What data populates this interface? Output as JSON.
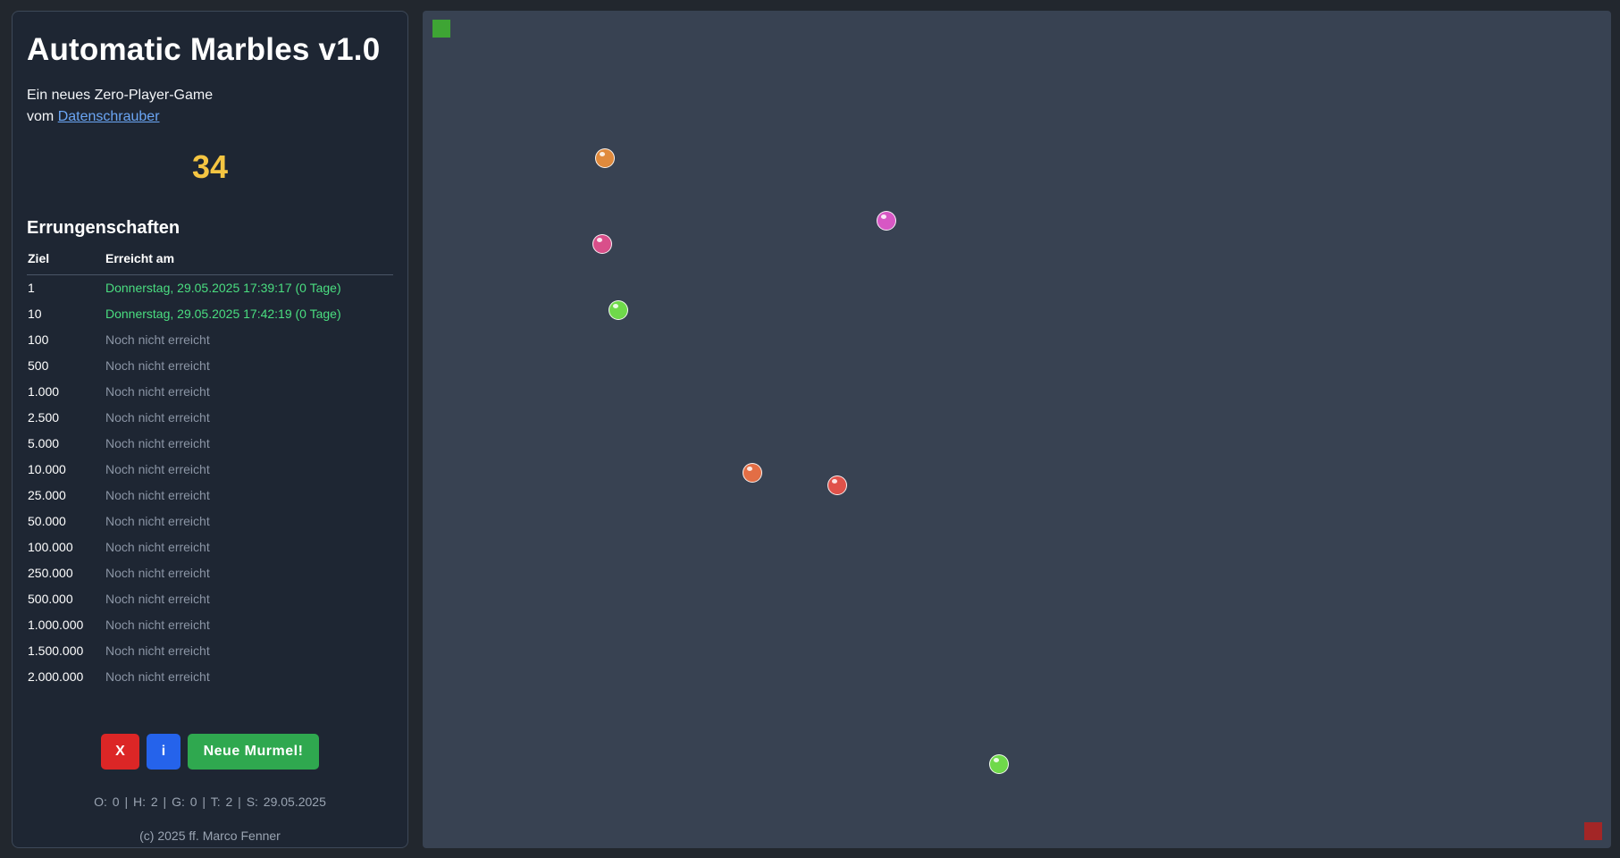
{
  "app": {
    "title": "Automatic Marbles v1.0",
    "subtitle_line1": "Ein neues Zero-Player-Game",
    "subtitle_by": "vom",
    "author_link": "Datenschrauber",
    "counter": "34"
  },
  "achievements": {
    "heading": "Errungenschaften",
    "col_goal": "Ziel",
    "col_reached": "Erreicht am",
    "rows": [
      {
        "goal": "1",
        "reached": "Donnerstag, 29.05.2025 17:39:17 (0 Tage)",
        "status": "reached"
      },
      {
        "goal": "10",
        "reached": "Donnerstag, 29.05.2025 17:42:19 (0 Tage)",
        "status": "reached"
      },
      {
        "goal": "100",
        "reached": "Noch nicht erreicht",
        "status": "pending"
      },
      {
        "goal": "500",
        "reached": "Noch nicht erreicht",
        "status": "pending"
      },
      {
        "goal": "1.000",
        "reached": "Noch nicht erreicht",
        "status": "pending"
      },
      {
        "goal": "2.500",
        "reached": "Noch nicht erreicht",
        "status": "pending"
      },
      {
        "goal": "5.000",
        "reached": "Noch nicht erreicht",
        "status": "pending"
      },
      {
        "goal": "10.000",
        "reached": "Noch nicht erreicht",
        "status": "pending"
      },
      {
        "goal": "25.000",
        "reached": "Noch nicht erreicht",
        "status": "pending"
      },
      {
        "goal": "50.000",
        "reached": "Noch nicht erreicht",
        "status": "pending"
      },
      {
        "goal": "100.000",
        "reached": "Noch nicht erreicht",
        "status": "pending"
      },
      {
        "goal": "250.000",
        "reached": "Noch nicht erreicht",
        "status": "pending"
      },
      {
        "goal": "500.000",
        "reached": "Noch nicht erreicht",
        "status": "pending"
      },
      {
        "goal": "1.000.000",
        "reached": "Noch nicht erreicht",
        "status": "pending"
      },
      {
        "goal": "1.500.000",
        "reached": "Noch nicht erreicht",
        "status": "pending"
      },
      {
        "goal": "2.000.000",
        "reached": "Noch nicht erreicht",
        "status": "pending"
      }
    ]
  },
  "buttons": {
    "reset_label": "X",
    "info_label": "i",
    "new_marble_label": "Neue Murmel!"
  },
  "stats": "O:  0   |  H:  2   |  G:  0   |  T:  2   |  S:  29.05.2025",
  "copyright": "(c) 2025 ff. Marco Fenner",
  "colors": {
    "start_marker": "#3ea534",
    "end_marker": "#a32626",
    "counter": "#f5c542",
    "reached_text": "#4ade80",
    "marbles": [
      "#e08a3c",
      "#d94f8a",
      "#d757c4",
      "#6fd94a",
      "#e36e45",
      "#e0524a",
      "#6fd94a"
    ]
  }
}
